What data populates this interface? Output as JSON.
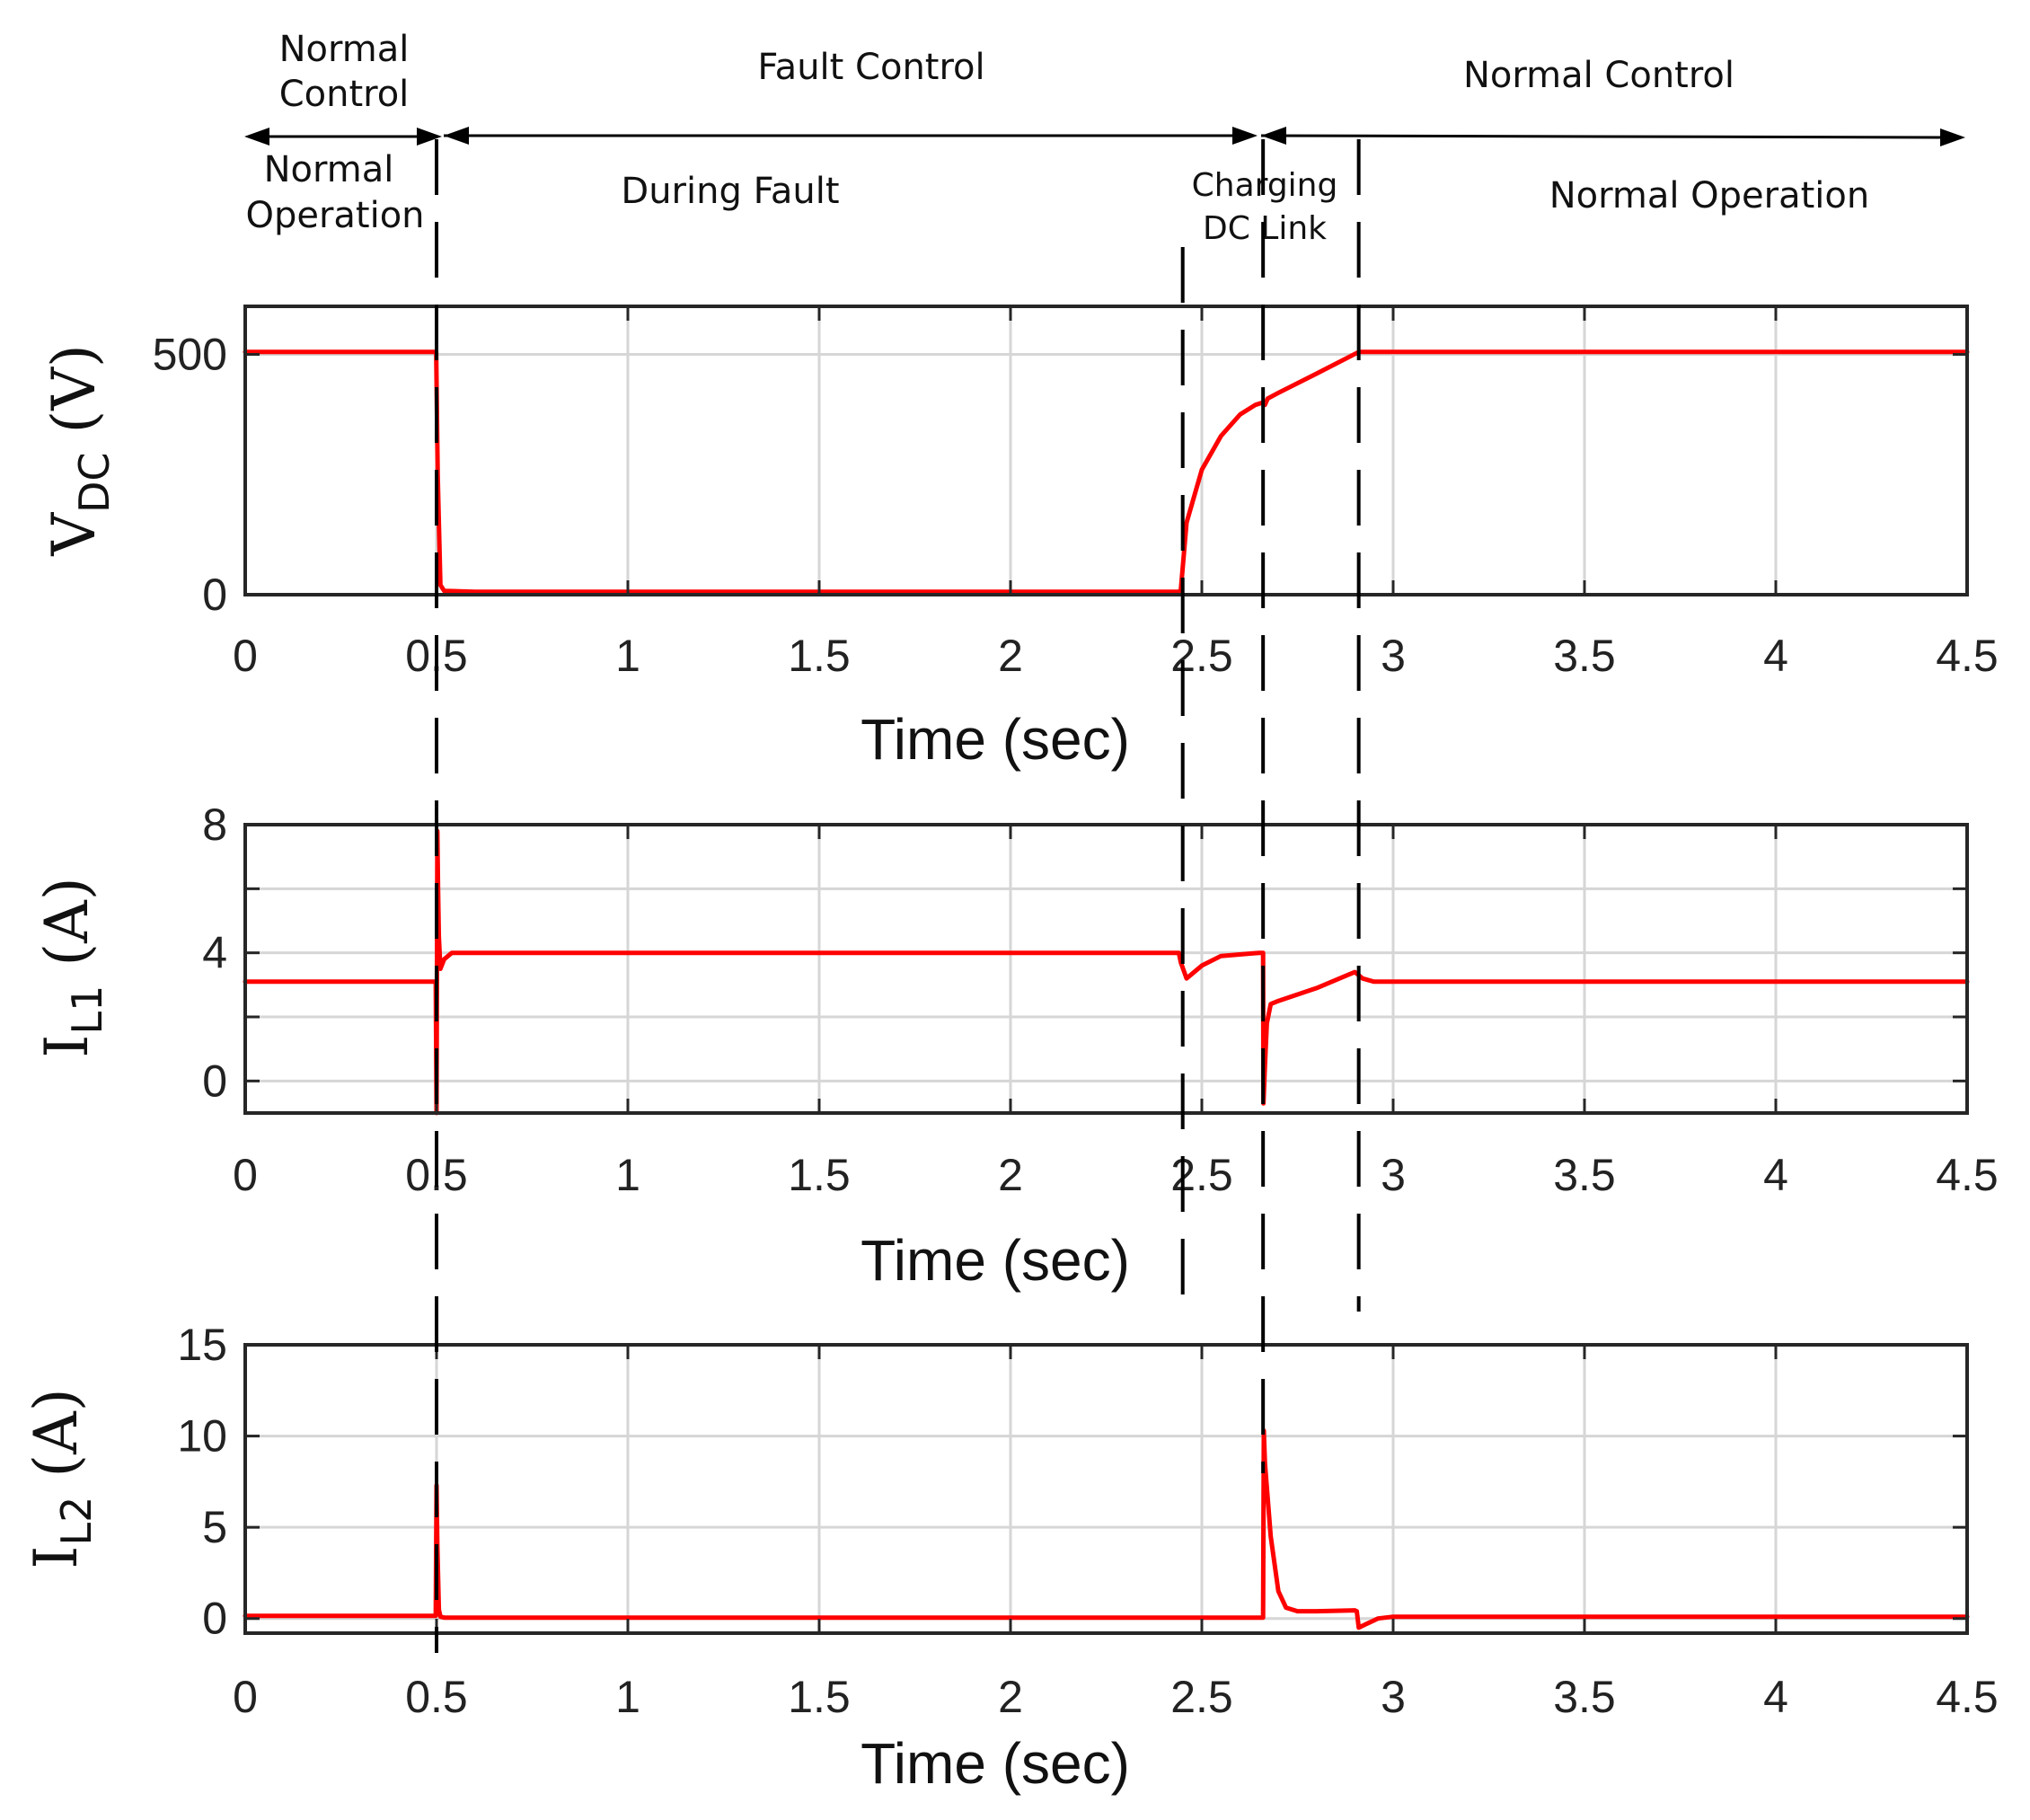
{
  "annotations": {
    "phases": [
      {
        "key": "normal_control_left",
        "label_lines": [
          "Normal",
          "Control"
        ]
      },
      {
        "key": "fault_control",
        "label_lines": [
          "Fault Control"
        ]
      },
      {
        "key": "normal_control_right",
        "label_lines": [
          "Normal Control"
        ]
      }
    ],
    "stages": [
      {
        "key": "normal_operation_left",
        "label_lines": [
          "Normal",
          "Operation"
        ]
      },
      {
        "key": "during_fault",
        "label_lines": [
          "During Fault"
        ]
      },
      {
        "key": "charging_dc_link",
        "label_lines": [
          "Charging",
          "DC Link"
        ]
      },
      {
        "key": "normal_operation_right",
        "label_lines": [
          "Normal Operation"
        ]
      }
    ],
    "event_times_sec": [
      0.5,
      2.45,
      2.66,
      2.91
    ]
  },
  "chart_data": [
    {
      "type": "line",
      "key": "vdc",
      "ylabel_main": "V",
      "ylabel_sub": "DC",
      "ylabel_unit": " (V)",
      "xlabel": "Time (sec)",
      "xlim": [
        0,
        4.5
      ],
      "ylim": [
        0,
        600
      ],
      "xticks": [
        0,
        0.5,
        1,
        1.5,
        2,
        2.5,
        3,
        3.5,
        4,
        4.5
      ],
      "xtick_labels": [
        "0",
        "0.5",
        "1",
        "1.5",
        "2",
        "2.5",
        "3",
        "3.5",
        "4",
        "4.5"
      ],
      "yticks": [
        0,
        500
      ],
      "ytick_labels": [
        "0",
        "500"
      ],
      "ygrid": [
        500
      ],
      "color": "#ff0000",
      "series": [
        {
          "name": "VDC",
          "x": [
            0,
            0.499,
            0.503,
            0.51,
            0.52,
            0.6,
            1.5,
            2.44,
            2.445,
            2.46,
            2.5,
            2.55,
            2.6,
            2.64,
            2.66,
            2.665,
            2.672,
            2.7,
            2.8,
            2.91,
            2.92,
            3.5,
            4.5
          ],
          "y": [
            505,
            505,
            250,
            20,
            8,
            6,
            6,
            6,
            10,
            150,
            260,
            330,
            375,
            395,
            400,
            395,
            408,
            420,
            460,
            505,
            505,
            505,
            505
          ]
        }
      ]
    },
    {
      "type": "line",
      "key": "il1",
      "ylabel_main": "I",
      "ylabel_sub": "L1",
      "ylabel_unit": " (A)",
      "xlabel": "Time (sec)",
      "xlim": [
        0,
        4.5
      ],
      "ylim": [
        -1,
        8
      ],
      "xticks": [
        0,
        0.5,
        1,
        1.5,
        2,
        2.5,
        3,
        3.5,
        4,
        4.5
      ],
      "xtick_labels": [
        "0",
        "0.5",
        "1",
        "1.5",
        "2",
        "2.5",
        "3",
        "3.5",
        "4",
        "4.5"
      ],
      "yticks": [
        0,
        4,
        8
      ],
      "ytick_labels": [
        "0",
        "4",
        "8"
      ],
      "ygrid": [
        0,
        2,
        4,
        6
      ],
      "color": "#ff0000",
      "series": [
        {
          "name": "IL1",
          "x": [
            0,
            0.498,
            0.5,
            0.502,
            0.504,
            0.506,
            0.51,
            0.52,
            0.54,
            0.6,
            1.5,
            2.44,
            2.445,
            2.46,
            2.5,
            2.55,
            2.65,
            2.66,
            2.661,
            2.665,
            2.67,
            2.68,
            2.7,
            2.8,
            2.88,
            2.9,
            2.92,
            2.95,
            3.5,
            4.5
          ],
          "y": [
            3.1,
            3.1,
            -1.0,
            7.8,
            6.0,
            4.5,
            3.5,
            3.8,
            4.0,
            4.0,
            4.0,
            4.0,
            3.7,
            3.2,
            3.6,
            3.9,
            4.0,
            4.0,
            -0.7,
            0.5,
            1.8,
            2.4,
            2.5,
            2.9,
            3.3,
            3.4,
            3.2,
            3.1,
            3.1,
            3.1
          ]
        }
      ]
    },
    {
      "type": "line",
      "key": "il2",
      "ylabel_main": "I",
      "ylabel_sub": "L2",
      "ylabel_unit": " (A)",
      "xlabel": "Time (sec)",
      "xlim": [
        0,
        4.5
      ],
      "ylim": [
        -0.8,
        15
      ],
      "xticks": [
        0,
        0.5,
        1,
        1.5,
        2,
        2.5,
        3,
        3.5,
        4,
        4.5
      ],
      "xtick_labels": [
        "0",
        "0.5",
        "1",
        "1.5",
        "2",
        "2.5",
        "3",
        "3.5",
        "4",
        "4.5"
      ],
      "yticks": [
        0,
        5,
        10,
        15
      ],
      "ytick_labels": [
        "0",
        "5",
        "10",
        "15"
      ],
      "ygrid": [
        0,
        5,
        10
      ],
      "color": "#ff0000",
      "series": [
        {
          "name": "IL2",
          "x": [
            0,
            0.498,
            0.5,
            0.502,
            0.506,
            0.51,
            0.52,
            1.5,
            2.66,
            2.662,
            2.665,
            2.68,
            2.7,
            2.72,
            2.75,
            2.8,
            2.9,
            2.905,
            2.91,
            2.93,
            2.96,
            3.0,
            3.5,
            4.5
          ],
          "y": [
            0.15,
            0.15,
            7.3,
            4.0,
            0.5,
            0.1,
            0.05,
            0.05,
            0.05,
            10.3,
            8.5,
            4.5,
            1.5,
            0.6,
            0.4,
            0.4,
            0.45,
            0.4,
            -0.5,
            -0.3,
            0.0,
            0.1,
            0.1,
            0.1
          ]
        }
      ]
    }
  ]
}
